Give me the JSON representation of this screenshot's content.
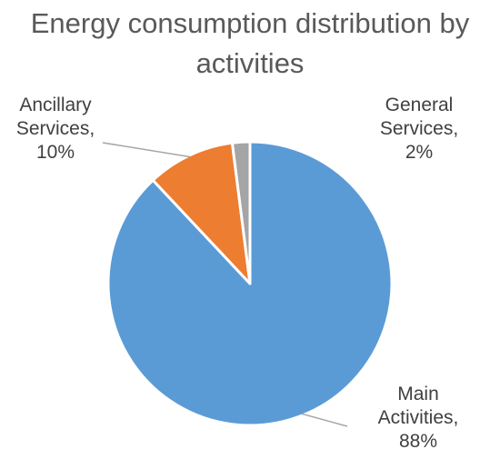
{
  "chart_data": {
    "type": "pie",
    "title_lines": [
      "Energy consumption distribution by",
      "activities"
    ],
    "slices": [
      {
        "name": "Main Activities",
        "value": 88,
        "label_lines": [
          "Main",
          "Activities,",
          "88%"
        ],
        "color": "#5B9BD5"
      },
      {
        "name": "Ancillary Services",
        "value": 10,
        "label_lines": [
          "Ancillary",
          "Services,",
          "10%"
        ],
        "color": "#ED7D31"
      },
      {
        "name": "General Services",
        "value": 2,
        "label_lines": [
          "General",
          "Services,",
          "2%"
        ],
        "color": "#A5A5A5"
      }
    ],
    "legend": "none",
    "data_labels": "outside with leader lines"
  }
}
